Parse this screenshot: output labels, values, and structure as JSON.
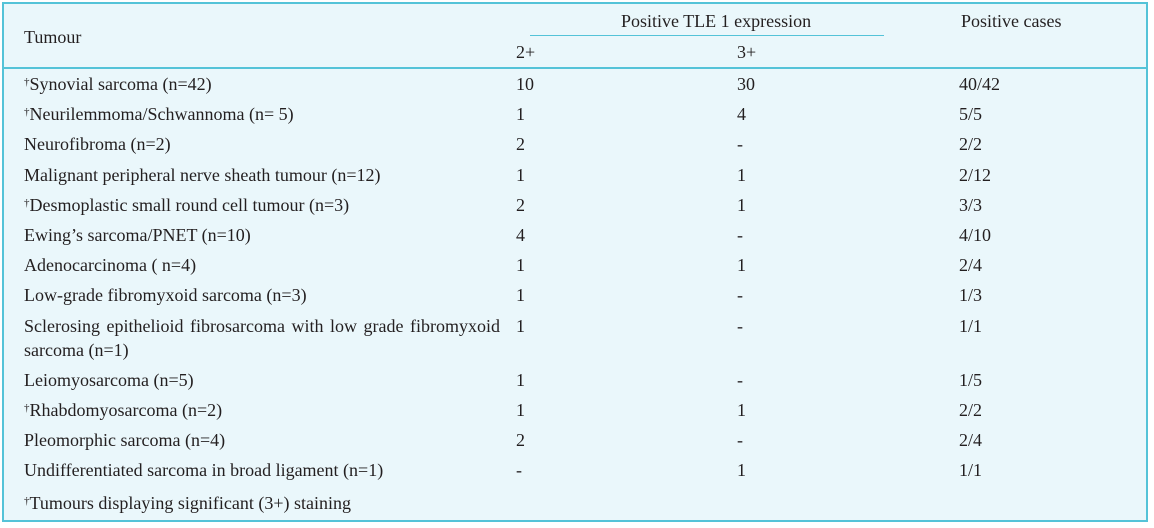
{
  "table": {
    "headers": {
      "tumour": "Tumour",
      "expression_group": "Positive TLE 1 expression",
      "col_2plus": "2+",
      "col_3plus": "3+",
      "positive_cases": "Positive cases"
    },
    "dagger": "†",
    "rows": [
      {
        "dagger": true,
        "tumour": "Synovial sarcoma (n=42)",
        "v2": "10",
        "v3": "30",
        "pos": "40/42"
      },
      {
        "dagger": true,
        "tumour": "Neurilemmoma/Schwannoma (n= 5)",
        "v2": "1",
        "v3": "4",
        "pos": "5/5"
      },
      {
        "dagger": false,
        "tumour": "Neurofibroma (n=2)",
        "v2": "2",
        "v3": "-",
        "pos": "2/2"
      },
      {
        "dagger": false,
        "tumour": "Malignant peripheral nerve sheath tumour (n=12)",
        "v2": "1",
        "v3": "1",
        "pos": "2/12"
      },
      {
        "dagger": true,
        "tumour": "Desmoplastic small round cell tumour (n=3)",
        "v2": "2",
        "v3": "1",
        "pos": "3/3"
      },
      {
        "dagger": false,
        "tumour": "Ewing’s sarcoma/PNET (n=10)",
        "v2": "4",
        "v3": "-",
        "pos": "4/10"
      },
      {
        "dagger": false,
        "tumour": "Adenocarcinoma ( n=4)",
        "v2": "1",
        "v3": "1",
        "pos": "2/4"
      },
      {
        "dagger": false,
        "tumour": "Low-grade fibromyxoid sarcoma (n=3)",
        "v2": "1",
        "v3": "-",
        "pos": "1/3"
      },
      {
        "dagger": false,
        "tumour": "Sclerosing epithelioid fibrosarcoma with low grade fibromyxoid sarcoma (n=1)",
        "v2": "1",
        "v3": "-",
        "pos": "1/1"
      },
      {
        "dagger": false,
        "tumour": "Leiomyosarcoma (n=5)",
        "v2": "1",
        "v3": "-",
        "pos": "1/5"
      },
      {
        "dagger": true,
        "tumour": "Rhabdomyosarcoma (n=2)",
        "v2": "1",
        "v3": "1",
        "pos": "2/2"
      },
      {
        "dagger": false,
        "tumour": "Pleomorphic sarcoma (n=4)",
        "v2": "2",
        "v3": "-",
        "pos": "2/4"
      },
      {
        "dagger": false,
        "tumour": "Undifferentiated sarcoma in broad ligament (n=1)",
        "v2": "-",
        "v3": "1",
        "pos": "1/1"
      }
    ],
    "footnote": "Tumours displaying significant (3+) staining"
  },
  "colors": {
    "border": "#54c3d8",
    "background": "#eaf7fb",
    "text": "#231f20"
  }
}
